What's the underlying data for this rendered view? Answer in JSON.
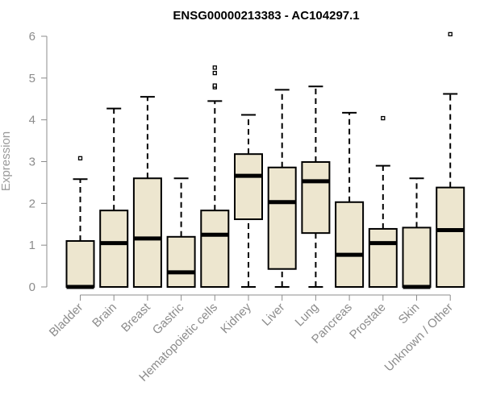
{
  "chart_data": {
    "type": "boxplot",
    "title": "ENSG00000213383 - AC104297.1",
    "xlabel": "",
    "ylabel": "Expression",
    "ylim": [
      0,
      6.2
    ],
    "yticks": [
      0,
      1,
      2,
      3,
      4,
      5,
      6
    ],
    "box_fill": "#ede6cf",
    "box_stroke": "#000000",
    "categories": [
      "Bladder",
      "Brain",
      "Breast",
      "Gastric",
      "Hematopoietic cells",
      "Kidney",
      "Liver",
      "Lung",
      "Pancreas",
      "Prostate",
      "Skin",
      "Unknown / Other"
    ],
    "boxes": [
      {
        "min": 0,
        "q1": 0,
        "median": 0,
        "q3": 1.1,
        "max": 2.58,
        "outliers": [
          3.08
        ]
      },
      {
        "min": 0,
        "q1": 0,
        "median": 1.05,
        "q3": 1.83,
        "max": 4.27,
        "outliers": []
      },
      {
        "min": 0,
        "q1": 0,
        "median": 1.16,
        "q3": 2.6,
        "max": 4.55,
        "outliers": []
      },
      {
        "min": 0,
        "q1": 0,
        "median": 0.35,
        "q3": 1.2,
        "max": 2.6,
        "outliers": []
      },
      {
        "min": 0,
        "q1": 0,
        "median": 1.25,
        "q3": 1.83,
        "max": 4.45,
        "outliers": [
          4.78,
          4.82,
          5.12,
          5.25
        ]
      },
      {
        "min": 0,
        "q1": 1.62,
        "median": 2.66,
        "q3": 3.18,
        "max": 4.12,
        "outliers": []
      },
      {
        "min": 0,
        "q1": 0.43,
        "median": 2.03,
        "q3": 2.86,
        "max": 4.72,
        "outliers": []
      },
      {
        "min": 0,
        "q1": 1.29,
        "median": 2.53,
        "q3": 2.99,
        "max": 4.8,
        "outliers": []
      },
      {
        "min": 0,
        "q1": 0,
        "median": 0.77,
        "q3": 2.03,
        "max": 4.17,
        "outliers": []
      },
      {
        "min": 0,
        "q1": 0,
        "median": 1.05,
        "q3": 1.39,
        "max": 2.9,
        "outliers": [
          4.04
        ]
      },
      {
        "min": 0,
        "q1": 0,
        "median": 0,
        "q3": 1.42,
        "max": 2.6,
        "outliers": []
      },
      {
        "min": 0,
        "q1": 0,
        "median": 1.36,
        "q3": 2.38,
        "max": 4.62,
        "outliers": [
          6.05
        ]
      }
    ]
  }
}
